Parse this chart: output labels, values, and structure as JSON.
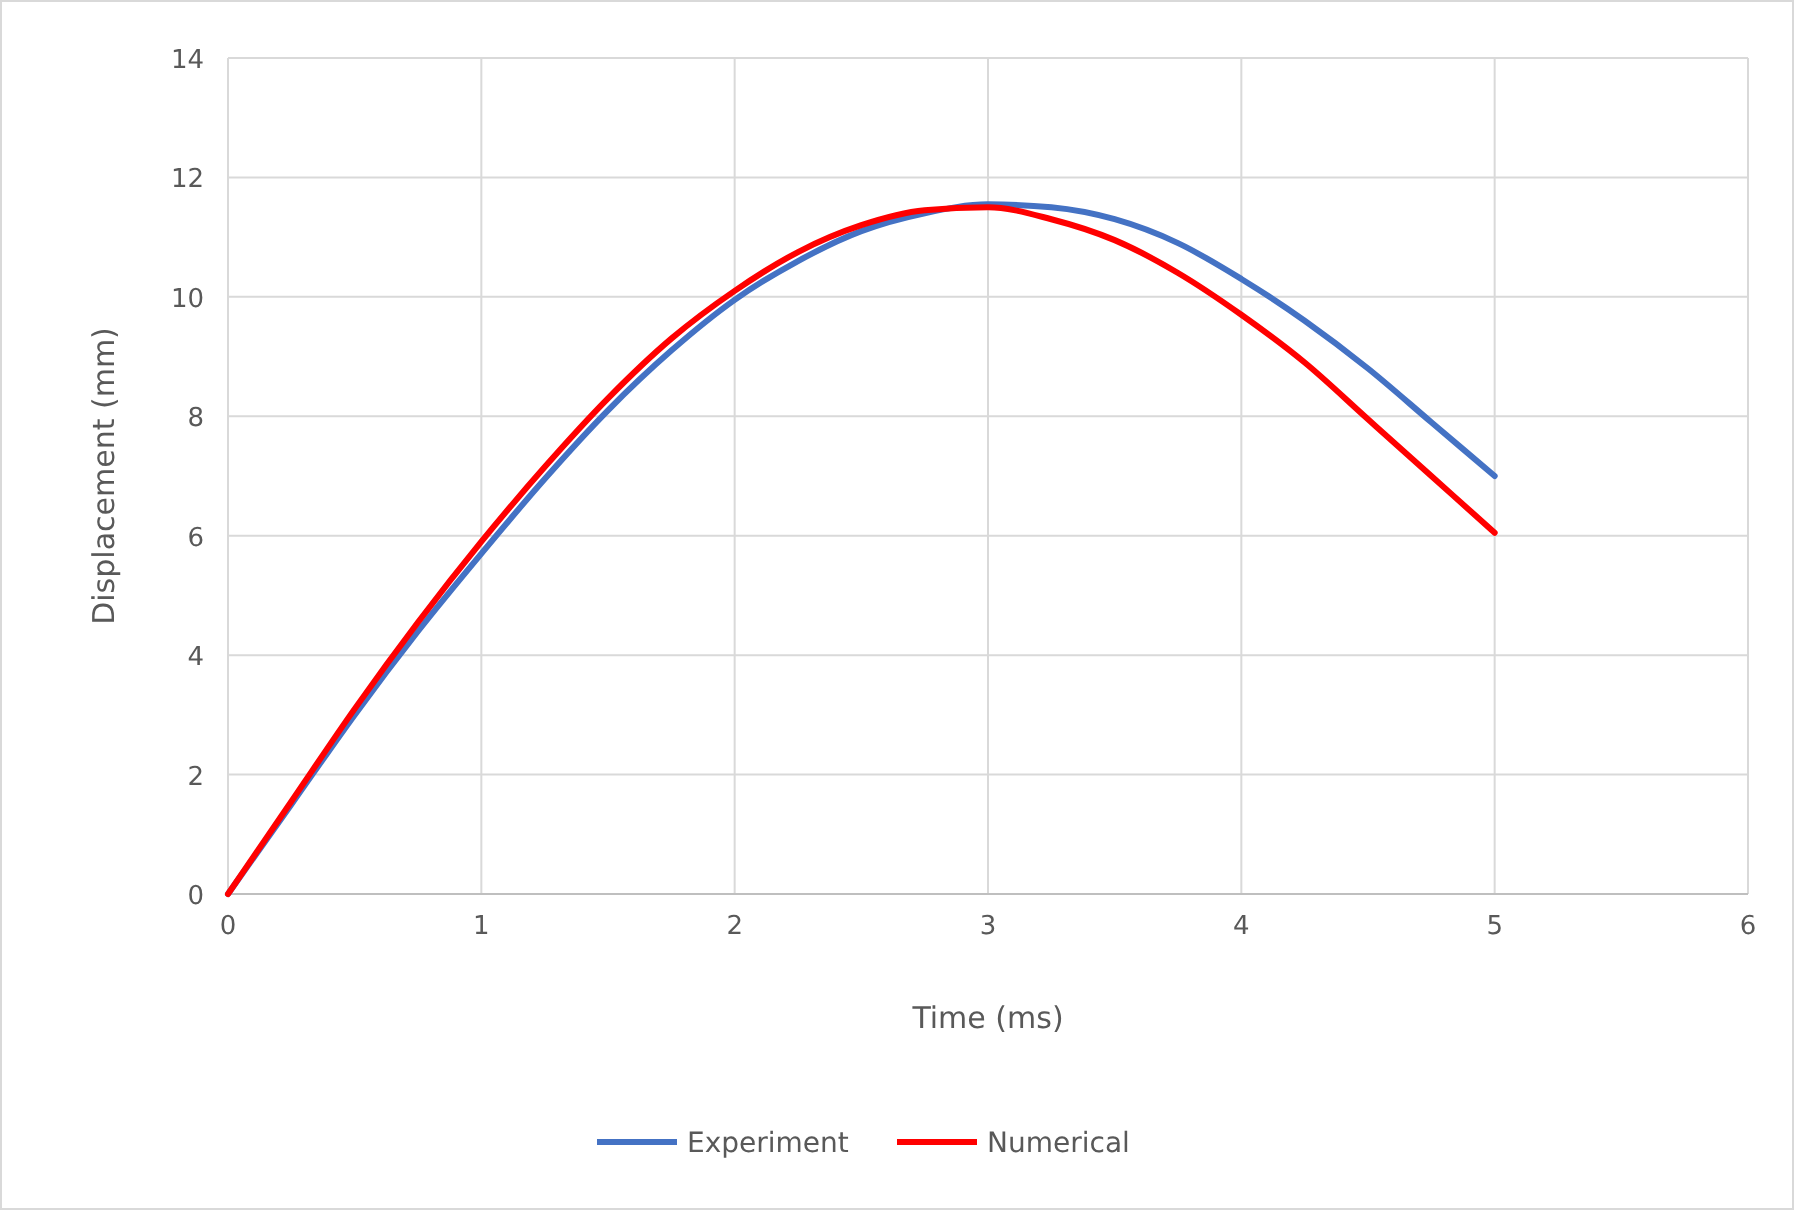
{
  "chart_data": {
    "type": "line",
    "xlabel": "Time (ms)",
    "ylabel": "Displacement (mm)",
    "xlim": [
      0,
      6
    ],
    "xticks": [
      0,
      1,
      2,
      3,
      4,
      5,
      6
    ],
    "ylim": [
      0,
      14
    ],
    "yticks": [
      0,
      2,
      4,
      6,
      8,
      10,
      12,
      14
    ],
    "grid": true,
    "legend": "bottom",
    "marker": "none",
    "line_style": "solid",
    "series": [
      {
        "name": "Experiment",
        "color": "#4472c4",
        "x": [
          0,
          0.25,
          0.5,
          0.75,
          1,
          1.25,
          1.5,
          1.75,
          2,
          2.25,
          2.5,
          2.75,
          3,
          3.25,
          3.5,
          3.75,
          4,
          4.25,
          4.5,
          4.75,
          5
        ],
        "values": [
          0,
          1.5,
          3.0,
          4.4,
          5.7,
          6.95,
          8.1,
          9.1,
          9.95,
          10.6,
          11.1,
          11.4,
          11.55,
          11.5,
          11.3,
          10.9,
          10.3,
          9.6,
          8.8,
          7.9,
          7.0
        ]
      },
      {
        "name": "Numerical",
        "color": "#ff0000",
        "x": [
          0,
          0.25,
          0.5,
          0.75,
          1,
          1.25,
          1.5,
          1.75,
          2,
          2.25,
          2.5,
          2.75,
          3,
          3.25,
          3.5,
          3.75,
          4,
          4.25,
          4.5,
          4.75,
          5
        ],
        "values": [
          0,
          1.55,
          3.1,
          4.55,
          5.9,
          7.15,
          8.3,
          9.3,
          10.1,
          10.75,
          11.2,
          11.45,
          11.5,
          11.3,
          10.95,
          10.4,
          9.7,
          8.9,
          7.95,
          7.0,
          6.05
        ]
      }
    ]
  }
}
